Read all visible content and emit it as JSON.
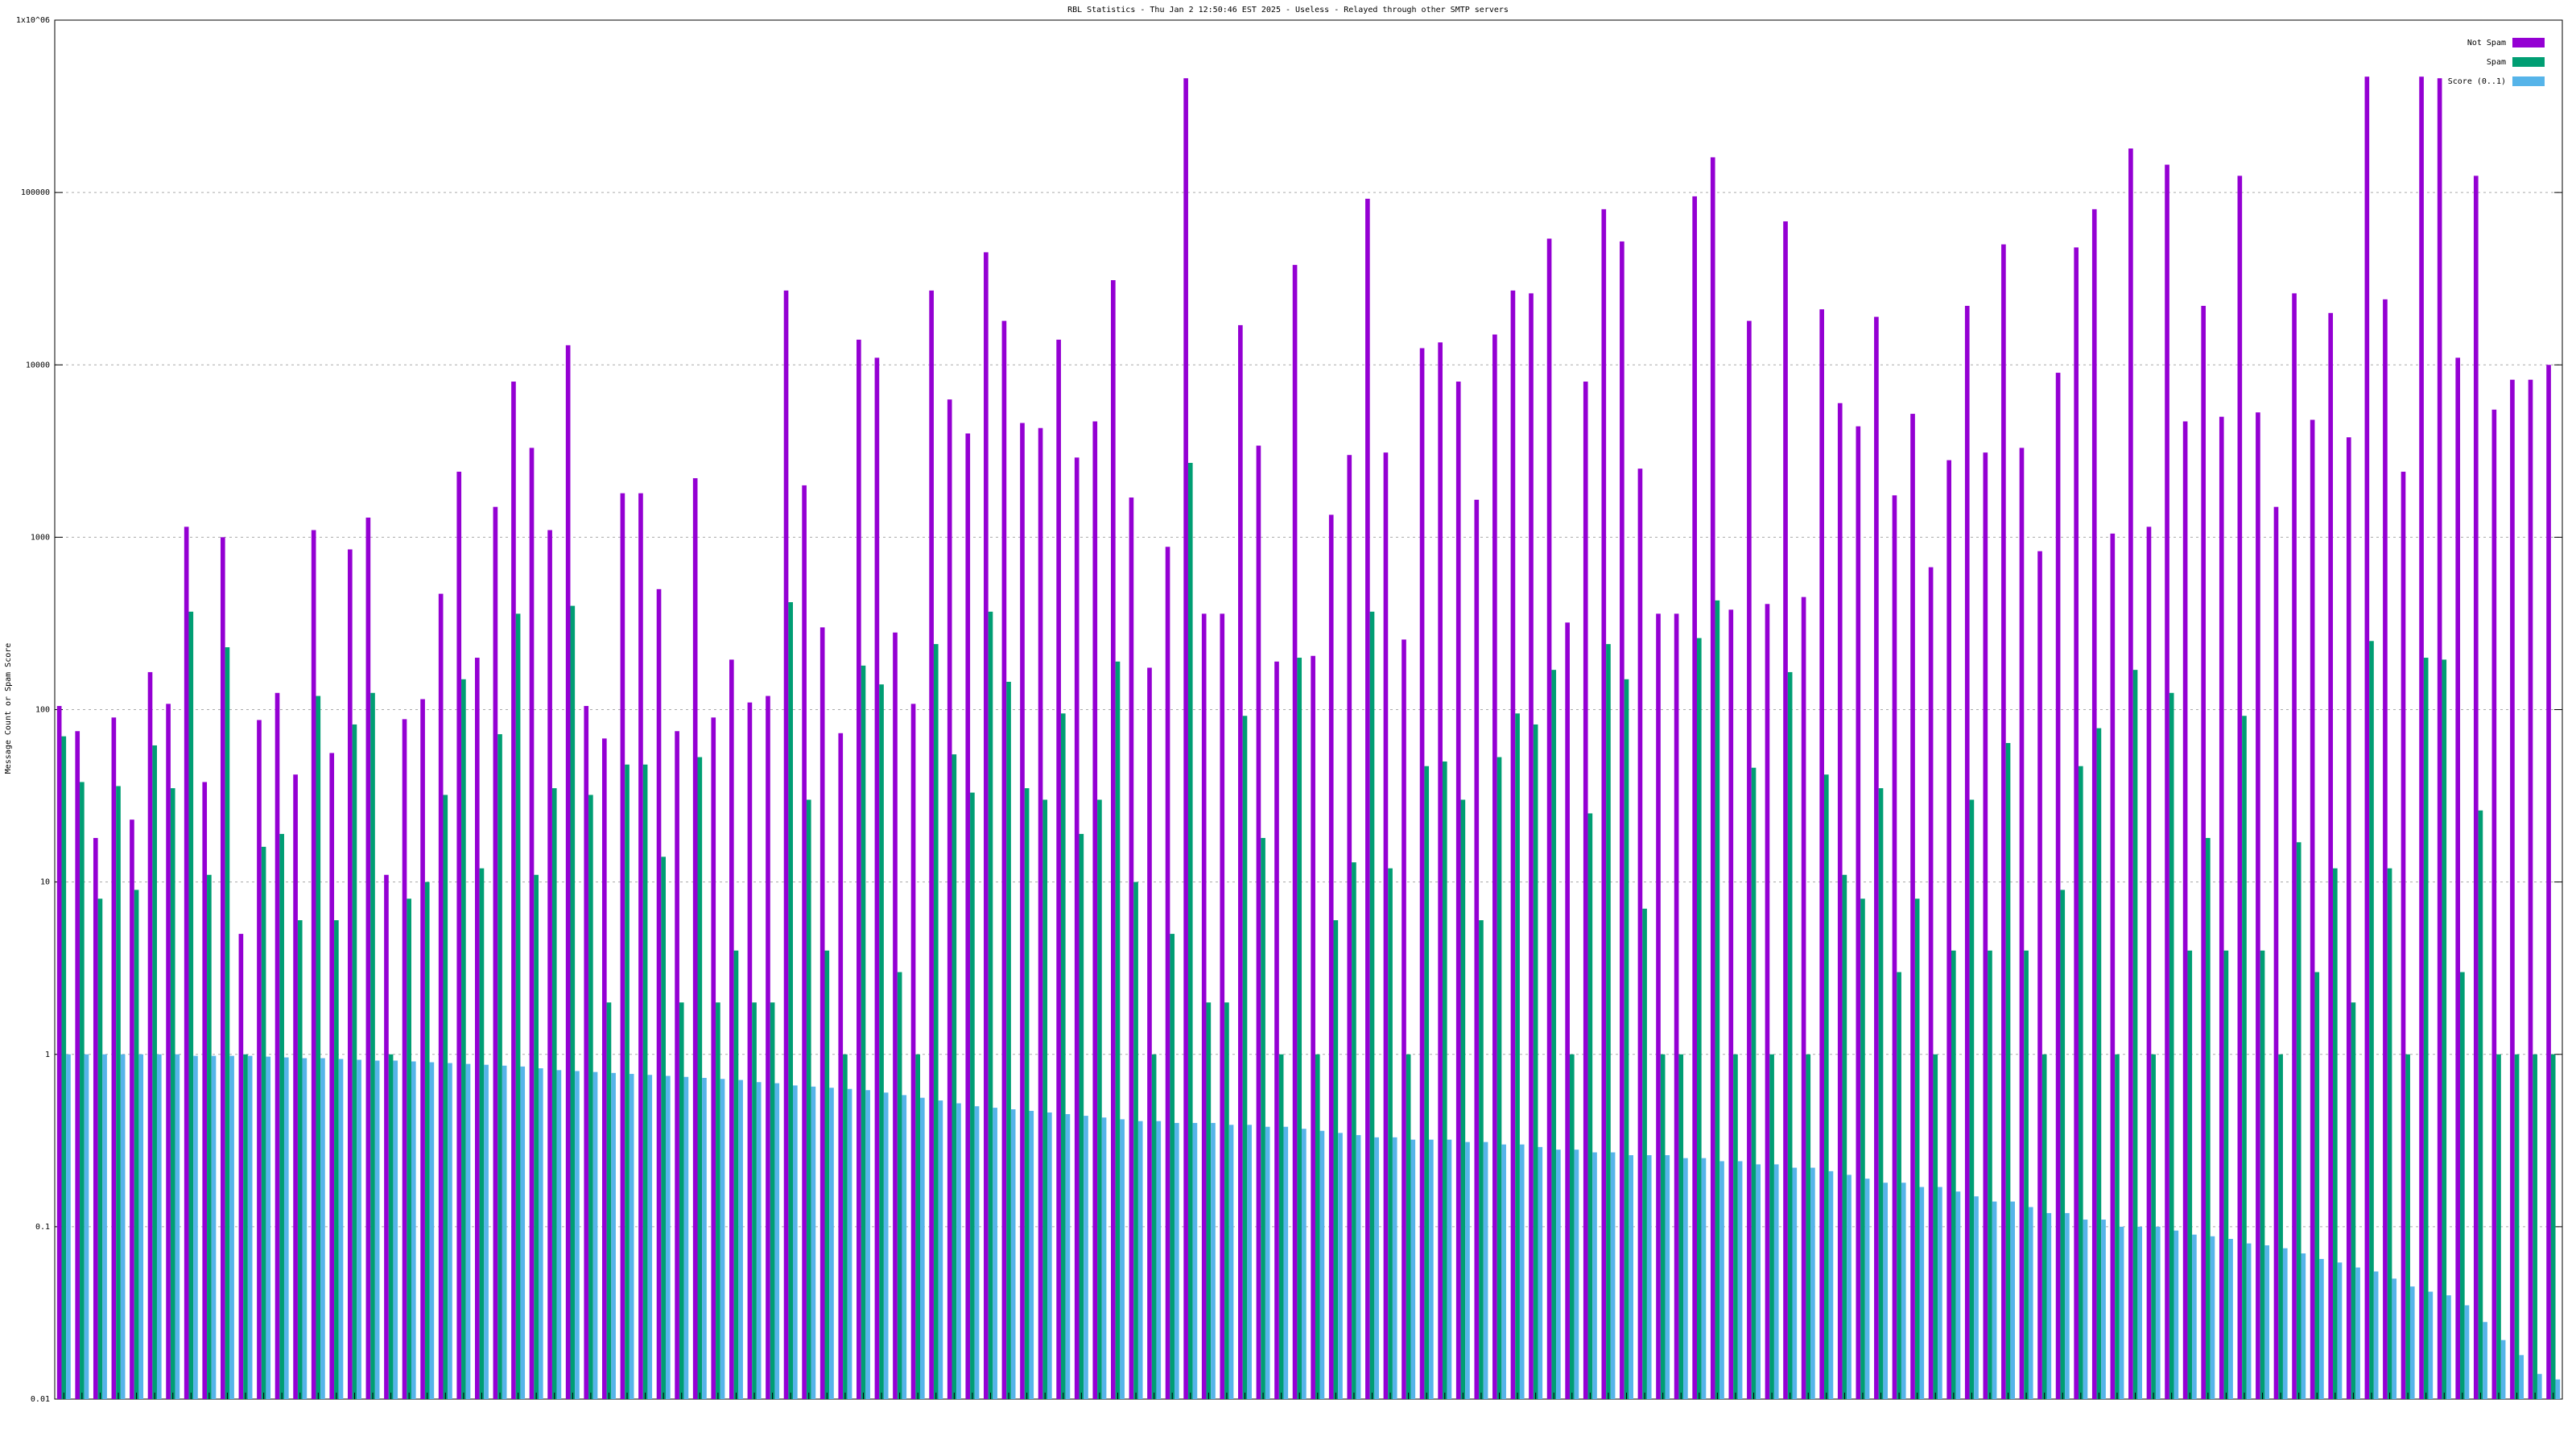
{
  "chart_data": {
    "type": "bar",
    "title": "RBL Statistics - Thu Jan  2 12:50:46 EST 2025 - Useless - Relayed through other SMTP servers",
    "y_label": "Message Count or Spam Score",
    "log_scale": true,
    "grid": true,
    "legend": "top-right",
    "ylim": [
      0.01,
      1000000
    ],
    "yticks": [
      0.01,
      0.1,
      1,
      10,
      100,
      1000,
      10000,
      100000,
      {
        "value": 1000000,
        "label": "1x10^06"
      }
    ],
    "categories": [
      null,
      null,
      null,
      null,
      null,
      null,
      null,
      null,
      null,
      null,
      null,
      null,
      null,
      null,
      null,
      null,
      null,
      null,
      null,
      null,
      null,
      null,
      null,
      null,
      null,
      null,
      null,
      null,
      null,
      null,
      null,
      null,
      null,
      null,
      null,
      null,
      null,
      null,
      null,
      null,
      null,
      null,
      null,
      null,
      null,
      null,
      null,
      null,
      null,
      null,
      null,
      null,
      null,
      null,
      null,
      null,
      null,
      null,
      null,
      null,
      null,
      null,
      null,
      null,
      null,
      null,
      null,
      null,
      null,
      null,
      null,
      null,
      null,
      null,
      null,
      null,
      null,
      null,
      null,
      null,
      null,
      null,
      null,
      null,
      null,
      null,
      null,
      null,
      null,
      null,
      null,
      null,
      null,
      null,
      null,
      null,
      null,
      null,
      null,
      null,
      null,
      null,
      null,
      null,
      null,
      null,
      null,
      null,
      null,
      null,
      null,
      null,
      null,
      null,
      null,
      null,
      null,
      null,
      null,
      null,
      null,
      null,
      null,
      null,
      null,
      null,
      null,
      null,
      null,
      null,
      null,
      null,
      null,
      null,
      null,
      null,
      null,
      null
    ],
    "series": [
      {
        "name": "Not Spam",
        "color": "#9400d3",
        "values": [
          105,
          75,
          18,
          90,
          23,
          165,
          108,
          1150,
          38,
          1000,
          5,
          87,
          125,
          42,
          1100,
          56,
          850,
          1300,
          11,
          88,
          115,
          470,
          2400,
          200,
          1500,
          8000,
          3300,
          1100,
          13000,
          105,
          68,
          1800,
          1800,
          500,
          75,
          2200,
          90,
          195,
          110,
          120,
          27000,
          2000,
          300,
          73,
          14000,
          11000,
          280,
          108,
          27000,
          6300,
          4000,
          45000,
          18000,
          4600,
          4300,
          14000,
          2900,
          4700,
          31000,
          1700,
          175,
          880,
          460000,
          360,
          360,
          17000,
          3400,
          190,
          38000,
          205,
          1350,
          3000,
          92000,
          3100,
          255,
          12500,
          13500,
          8000,
          1650,
          15000,
          27000,
          26000,
          54000,
          320,
          8000,
          80000,
          52000,
          2500,
          360,
          360,
          95000,
          160000,
          380,
          18000,
          410,
          68000,
          450,
          21000,
          6000,
          4400,
          19000,
          1750,
          5200,
          670,
          2800,
          22000,
          3100,
          50000,
          3300,
          830,
          9000,
          48000,
          80000,
          1050,
          180000,
          1150,
          145000,
          4700,
          22000,
          5000,
          125000,
          5300,
          1500,
          26000,
          4800,
          20000,
          3800,
          470000,
          24000,
          2400,
          470000,
          460000,
          11000,
          125000,
          5500,
          8200,
          8200,
          10000
        ]
      },
      {
        "name": "Spam",
        "color": "#009e73",
        "values": [
          70,
          38,
          8,
          36,
          9,
          62,
          35,
          370,
          11,
          230,
          1,
          16,
          19,
          6,
          120,
          6,
          82,
          125,
          1,
          8,
          10,
          32,
          150,
          12,
          72,
          360,
          11,
          35,
          400,
          32,
          2,
          48,
          48,
          14,
          2,
          53,
          2,
          4,
          2,
          2,
          420,
          30,
          4,
          1,
          180,
          140,
          3,
          1,
          240,
          55,
          33,
          370,
          145,
          35,
          30,
          95,
          19,
          30,
          190,
          10,
          1,
          5,
          2700,
          2,
          2,
          92,
          18,
          1,
          200,
          1,
          6,
          13,
          370,
          12,
          1,
          47,
          50,
          30,
          6,
          53,
          95,
          82,
          170,
          1,
          25,
          240,
          150,
          7,
          1,
          1,
          260,
          430,
          1,
          46,
          1,
          165,
          1,
          42,
          11,
          8,
          35,
          3,
          8,
          1,
          4,
          30,
          4,
          64,
          4,
          1,
          9,
          47,
          78,
          1,
          170,
          1,
          125,
          4,
          18,
          4,
          92,
          4,
          1,
          17,
          3,
          12,
          2,
          250,
          12,
          1,
          200,
          195,
          3,
          26,
          1,
          1,
          1,
          1
        ]
      },
      {
        "name": "Score (0..1)",
        "color": "#56b4e9",
        "values": [
          1,
          1,
          1,
          1,
          1,
          1,
          1,
          0.98,
          0.98,
          0.98,
          0.98,
          0.97,
          0.96,
          0.95,
          0.95,
          0.94,
          0.93,
          0.92,
          0.92,
          0.91,
          0.9,
          0.89,
          0.88,
          0.87,
          0.86,
          0.85,
          0.83,
          0.81,
          0.8,
          0.79,
          0.78,
          0.77,
          0.76,
          0.75,
          0.74,
          0.73,
          0.72,
          0.71,
          0.69,
          0.68,
          0.66,
          0.65,
          0.64,
          0.63,
          0.62,
          0.6,
          0.58,
          0.56,
          0.54,
          0.52,
          0.5,
          0.49,
          0.48,
          0.47,
          0.46,
          0.45,
          0.44,
          0.43,
          0.42,
          0.41,
          0.41,
          0.4,
          0.4,
          0.4,
          0.39,
          0.39,
          0.38,
          0.38,
          0.37,
          0.36,
          0.35,
          0.34,
          0.33,
          0.33,
          0.32,
          0.32,
          0.32,
          0.31,
          0.31,
          0.3,
          0.3,
          0.29,
          0.28,
          0.28,
          0.27,
          0.27,
          0.26,
          0.26,
          0.26,
          0.25,
          0.25,
          0.24,
          0.24,
          0.23,
          0.23,
          0.22,
          0.22,
          0.21,
          0.2,
          0.19,
          0.18,
          0.18,
          0.17,
          0.17,
          0.16,
          0.15,
          0.14,
          0.14,
          0.13,
          0.12,
          0.12,
          0.11,
          0.11,
          0.1,
          0.1,
          0.1,
          0.095,
          0.09,
          0.088,
          0.085,
          0.08,
          0.078,
          0.075,
          0.07,
          0.065,
          0.062,
          0.058,
          0.055,
          0.05,
          0.045,
          0.042,
          0.04,
          0.035,
          0.028,
          0.022,
          0.018,
          0.014,
          0.013
        ]
      }
    ]
  }
}
